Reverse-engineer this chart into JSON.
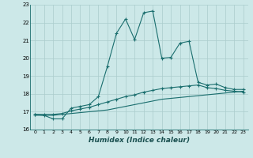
{
  "xlabel": "Humidex (Indice chaleur)",
  "background_color": "#cce8e8",
  "grid_color": "#aacccc",
  "line_color": "#1a6e6e",
  "xlim": [
    -0.5,
    23.5
  ],
  "ylim": [
    16,
    23
  ],
  "xticks": [
    0,
    1,
    2,
    3,
    4,
    5,
    6,
    7,
    8,
    9,
    10,
    11,
    12,
    13,
    14,
    15,
    16,
    17,
    18,
    19,
    20,
    21,
    22,
    23
  ],
  "yticks": [
    16,
    17,
    18,
    19,
    20,
    21,
    22,
    23
  ],
  "line1_x": [
    0,
    1,
    2,
    3,
    4,
    5,
    6,
    7,
    8,
    9,
    10,
    11,
    12,
    13,
    14,
    15,
    16,
    17,
    18,
    19,
    20,
    21,
    22,
    23
  ],
  "line1_y": [
    16.8,
    16.8,
    16.8,
    16.85,
    16.9,
    16.95,
    17.0,
    17.05,
    17.1,
    17.2,
    17.3,
    17.4,
    17.5,
    17.6,
    17.7,
    17.75,
    17.8,
    17.85,
    17.9,
    17.95,
    18.0,
    18.05,
    18.1,
    18.15
  ],
  "line2_x": [
    0,
    1,
    2,
    3,
    4,
    5,
    6,
    7,
    8,
    9,
    10,
    11,
    12,
    13,
    14,
    15,
    16,
    17,
    18,
    19,
    20,
    21,
    22,
    23
  ],
  "line2_y": [
    16.85,
    16.85,
    16.85,
    16.9,
    17.05,
    17.15,
    17.25,
    17.4,
    17.55,
    17.7,
    17.85,
    17.95,
    18.1,
    18.2,
    18.3,
    18.35,
    18.4,
    18.45,
    18.5,
    18.35,
    18.3,
    18.2,
    18.15,
    18.1
  ],
  "line3_x": [
    0,
    1,
    2,
    3,
    4,
    5,
    6,
    7,
    8,
    9,
    10,
    11,
    12,
    13,
    14,
    15,
    16,
    17,
    18,
    19,
    20,
    21,
    22,
    23
  ],
  "line3_y": [
    16.85,
    16.8,
    16.6,
    16.6,
    17.2,
    17.3,
    17.4,
    17.85,
    19.55,
    21.4,
    22.2,
    21.05,
    22.55,
    22.65,
    20.0,
    20.05,
    20.85,
    20.95,
    18.65,
    18.5,
    18.55,
    18.35,
    18.25,
    18.25
  ],
  "figsize": [
    3.2,
    2.0
  ],
  "dpi": 100
}
